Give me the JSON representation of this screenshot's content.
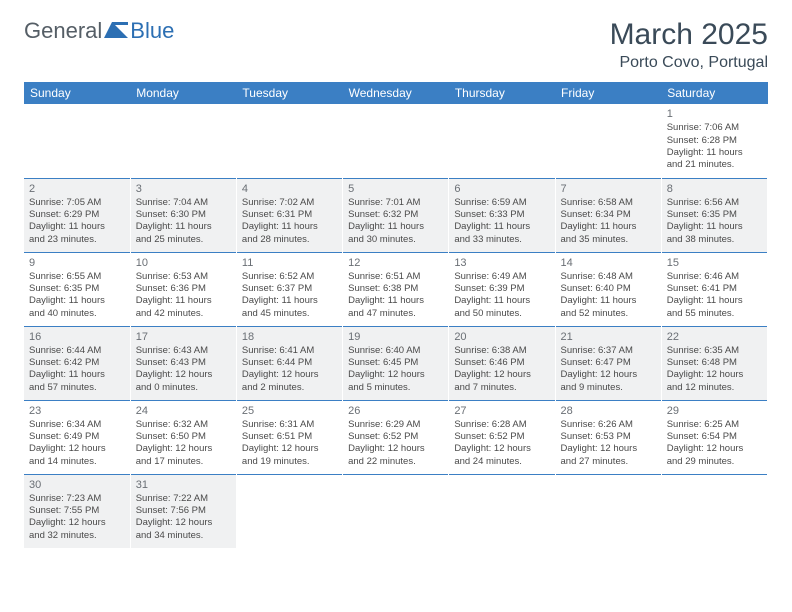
{
  "header": {
    "logo_text_1": "General",
    "logo_text_2": "Blue",
    "title": "March 2025",
    "location": "Porto Covo, Portugal"
  },
  "colors": {
    "header_bg": "#3b7fc4",
    "header_text": "#ffffff",
    "shaded_bg": "#f0f1f2",
    "row_border": "#3b7fc4",
    "logo_grey": "#555e66",
    "logo_blue": "#2c6fb3"
  },
  "weekdays": [
    "Sunday",
    "Monday",
    "Tuesday",
    "Wednesday",
    "Thursday",
    "Friday",
    "Saturday"
  ],
  "cells": [
    {
      "day": "",
      "lines": [
        "",
        "",
        "",
        ""
      ],
      "shaded": false
    },
    {
      "day": "",
      "lines": [
        "",
        "",
        "",
        ""
      ],
      "shaded": false
    },
    {
      "day": "",
      "lines": [
        "",
        "",
        "",
        ""
      ],
      "shaded": false
    },
    {
      "day": "",
      "lines": [
        "",
        "",
        "",
        ""
      ],
      "shaded": false
    },
    {
      "day": "",
      "lines": [
        "",
        "",
        "",
        ""
      ],
      "shaded": false
    },
    {
      "day": "",
      "lines": [
        "",
        "",
        "",
        ""
      ],
      "shaded": false
    },
    {
      "day": "1",
      "lines": [
        "Sunrise: 7:06 AM",
        "Sunset: 6:28 PM",
        "Daylight: 11 hours",
        "and 21 minutes."
      ],
      "shaded": false
    },
    {
      "day": "2",
      "lines": [
        "Sunrise: 7:05 AM",
        "Sunset: 6:29 PM",
        "Daylight: 11 hours",
        "and 23 minutes."
      ],
      "shaded": true
    },
    {
      "day": "3",
      "lines": [
        "Sunrise: 7:04 AM",
        "Sunset: 6:30 PM",
        "Daylight: 11 hours",
        "and 25 minutes."
      ],
      "shaded": true
    },
    {
      "day": "4",
      "lines": [
        "Sunrise: 7:02 AM",
        "Sunset: 6:31 PM",
        "Daylight: 11 hours",
        "and 28 minutes."
      ],
      "shaded": true
    },
    {
      "day": "5",
      "lines": [
        "Sunrise: 7:01 AM",
        "Sunset: 6:32 PM",
        "Daylight: 11 hours",
        "and 30 minutes."
      ],
      "shaded": true
    },
    {
      "day": "6",
      "lines": [
        "Sunrise: 6:59 AM",
        "Sunset: 6:33 PM",
        "Daylight: 11 hours",
        "and 33 minutes."
      ],
      "shaded": true
    },
    {
      "day": "7",
      "lines": [
        "Sunrise: 6:58 AM",
        "Sunset: 6:34 PM",
        "Daylight: 11 hours",
        "and 35 minutes."
      ],
      "shaded": true
    },
    {
      "day": "8",
      "lines": [
        "Sunrise: 6:56 AM",
        "Sunset: 6:35 PM",
        "Daylight: 11 hours",
        "and 38 minutes."
      ],
      "shaded": true
    },
    {
      "day": "9",
      "lines": [
        "Sunrise: 6:55 AM",
        "Sunset: 6:35 PM",
        "Daylight: 11 hours",
        "and 40 minutes."
      ],
      "shaded": false
    },
    {
      "day": "10",
      "lines": [
        "Sunrise: 6:53 AM",
        "Sunset: 6:36 PM",
        "Daylight: 11 hours",
        "and 42 minutes."
      ],
      "shaded": false
    },
    {
      "day": "11",
      "lines": [
        "Sunrise: 6:52 AM",
        "Sunset: 6:37 PM",
        "Daylight: 11 hours",
        "and 45 minutes."
      ],
      "shaded": false
    },
    {
      "day": "12",
      "lines": [
        "Sunrise: 6:51 AM",
        "Sunset: 6:38 PM",
        "Daylight: 11 hours",
        "and 47 minutes."
      ],
      "shaded": false
    },
    {
      "day": "13",
      "lines": [
        "Sunrise: 6:49 AM",
        "Sunset: 6:39 PM",
        "Daylight: 11 hours",
        "and 50 minutes."
      ],
      "shaded": false
    },
    {
      "day": "14",
      "lines": [
        "Sunrise: 6:48 AM",
        "Sunset: 6:40 PM",
        "Daylight: 11 hours",
        "and 52 minutes."
      ],
      "shaded": false
    },
    {
      "day": "15",
      "lines": [
        "Sunrise: 6:46 AM",
        "Sunset: 6:41 PM",
        "Daylight: 11 hours",
        "and 55 minutes."
      ],
      "shaded": false
    },
    {
      "day": "16",
      "lines": [
        "Sunrise: 6:44 AM",
        "Sunset: 6:42 PM",
        "Daylight: 11 hours",
        "and 57 minutes."
      ],
      "shaded": true
    },
    {
      "day": "17",
      "lines": [
        "Sunrise: 6:43 AM",
        "Sunset: 6:43 PM",
        "Daylight: 12 hours",
        "and 0 minutes."
      ],
      "shaded": true
    },
    {
      "day": "18",
      "lines": [
        "Sunrise: 6:41 AM",
        "Sunset: 6:44 PM",
        "Daylight: 12 hours",
        "and 2 minutes."
      ],
      "shaded": true
    },
    {
      "day": "19",
      "lines": [
        "Sunrise: 6:40 AM",
        "Sunset: 6:45 PM",
        "Daylight: 12 hours",
        "and 5 minutes."
      ],
      "shaded": true
    },
    {
      "day": "20",
      "lines": [
        "Sunrise: 6:38 AM",
        "Sunset: 6:46 PM",
        "Daylight: 12 hours",
        "and 7 minutes."
      ],
      "shaded": true
    },
    {
      "day": "21",
      "lines": [
        "Sunrise: 6:37 AM",
        "Sunset: 6:47 PM",
        "Daylight: 12 hours",
        "and 9 minutes."
      ],
      "shaded": true
    },
    {
      "day": "22",
      "lines": [
        "Sunrise: 6:35 AM",
        "Sunset: 6:48 PM",
        "Daylight: 12 hours",
        "and 12 minutes."
      ],
      "shaded": true
    },
    {
      "day": "23",
      "lines": [
        "Sunrise: 6:34 AM",
        "Sunset: 6:49 PM",
        "Daylight: 12 hours",
        "and 14 minutes."
      ],
      "shaded": false
    },
    {
      "day": "24",
      "lines": [
        "Sunrise: 6:32 AM",
        "Sunset: 6:50 PM",
        "Daylight: 12 hours",
        "and 17 minutes."
      ],
      "shaded": false
    },
    {
      "day": "25",
      "lines": [
        "Sunrise: 6:31 AM",
        "Sunset: 6:51 PM",
        "Daylight: 12 hours",
        "and 19 minutes."
      ],
      "shaded": false
    },
    {
      "day": "26",
      "lines": [
        "Sunrise: 6:29 AM",
        "Sunset: 6:52 PM",
        "Daylight: 12 hours",
        "and 22 minutes."
      ],
      "shaded": false
    },
    {
      "day": "27",
      "lines": [
        "Sunrise: 6:28 AM",
        "Sunset: 6:52 PM",
        "Daylight: 12 hours",
        "and 24 minutes."
      ],
      "shaded": false
    },
    {
      "day": "28",
      "lines": [
        "Sunrise: 6:26 AM",
        "Sunset: 6:53 PM",
        "Daylight: 12 hours",
        "and 27 minutes."
      ],
      "shaded": false
    },
    {
      "day": "29",
      "lines": [
        "Sunrise: 6:25 AM",
        "Sunset: 6:54 PM",
        "Daylight: 12 hours",
        "and 29 minutes."
      ],
      "shaded": false
    },
    {
      "day": "30",
      "lines": [
        "Sunrise: 7:23 AM",
        "Sunset: 7:55 PM",
        "Daylight: 12 hours",
        "and 32 minutes."
      ],
      "shaded": true
    },
    {
      "day": "31",
      "lines": [
        "Sunrise: 7:22 AM",
        "Sunset: 7:56 PM",
        "Daylight: 12 hours",
        "and 34 minutes."
      ],
      "shaded": true
    },
    {
      "day": "",
      "lines": [
        "",
        "",
        "",
        ""
      ],
      "shaded": false
    },
    {
      "day": "",
      "lines": [
        "",
        "",
        "",
        ""
      ],
      "shaded": false
    },
    {
      "day": "",
      "lines": [
        "",
        "",
        "",
        ""
      ],
      "shaded": false
    },
    {
      "day": "",
      "lines": [
        "",
        "",
        "",
        ""
      ],
      "shaded": false
    },
    {
      "day": "",
      "lines": [
        "",
        "",
        "",
        ""
      ],
      "shaded": false
    }
  ]
}
